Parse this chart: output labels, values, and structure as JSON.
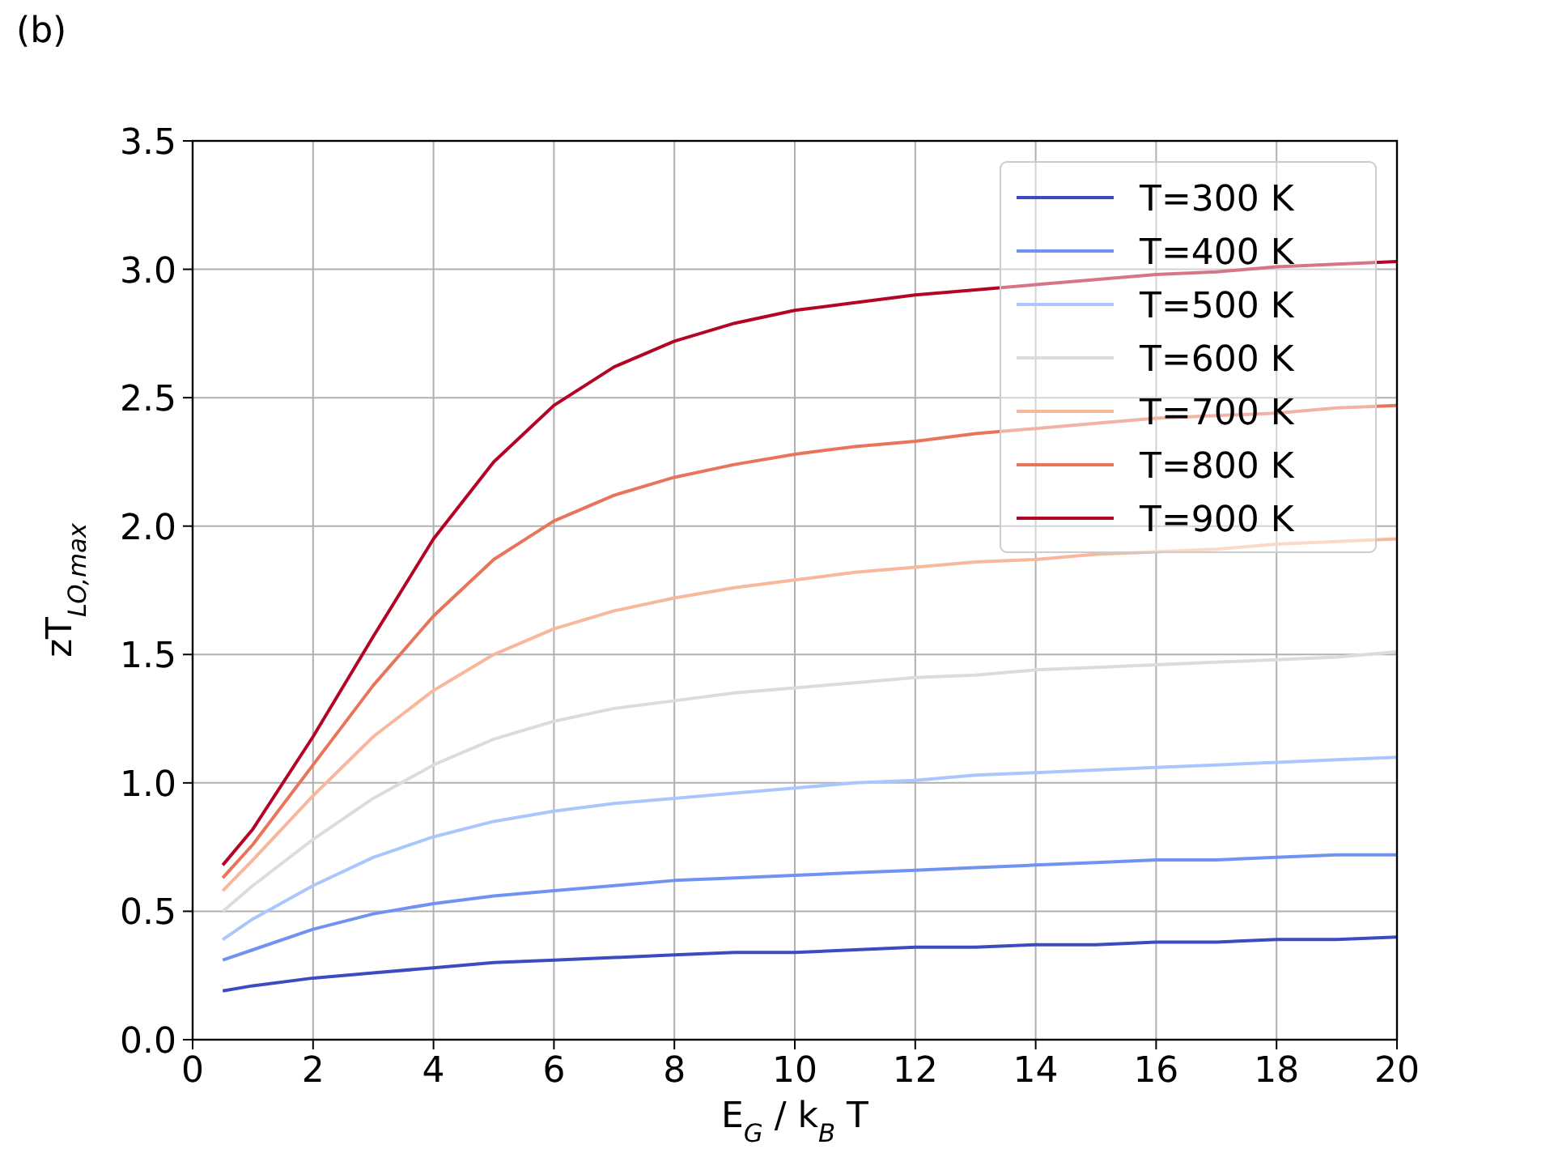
{
  "chart_data": {
    "type": "line",
    "annotations": [
      "(b)"
    ],
    "xlabel": "E$_{G}$ / k$_{B}$ T",
    "ylabel": "zT$_{LO,max}$",
    "x": [
      0.5,
      1,
      2,
      3,
      4,
      5,
      6,
      7,
      8,
      9,
      10,
      11,
      12,
      13,
      14,
      15,
      16,
      17,
      18,
      19,
      20
    ],
    "series": [
      {
        "name": "T=300 K",
        "color": "#3b4cc0",
        "values": [
          0.19,
          0.21,
          0.24,
          0.26,
          0.28,
          0.3,
          0.31,
          0.32,
          0.33,
          0.34,
          0.34,
          0.35,
          0.36,
          0.36,
          0.37,
          0.37,
          0.38,
          0.38,
          0.39,
          0.39,
          0.4
        ]
      },
      {
        "name": "T=400 K",
        "color": "#6f92f3",
        "values": [
          0.31,
          0.35,
          0.43,
          0.49,
          0.53,
          0.56,
          0.58,
          0.6,
          0.62,
          0.63,
          0.64,
          0.65,
          0.66,
          0.67,
          0.68,
          0.69,
          0.7,
          0.7,
          0.71,
          0.72,
          0.72
        ]
      },
      {
        "name": "T=500 K",
        "color": "#aac7fd",
        "values": [
          0.39,
          0.47,
          0.6,
          0.71,
          0.79,
          0.85,
          0.89,
          0.92,
          0.94,
          0.96,
          0.98,
          1.0,
          1.01,
          1.03,
          1.04,
          1.05,
          1.06,
          1.07,
          1.08,
          1.09,
          1.1
        ]
      },
      {
        "name": "T=600 K",
        "color": "#dddcdc",
        "values": [
          0.5,
          0.6,
          0.78,
          0.94,
          1.07,
          1.17,
          1.24,
          1.29,
          1.32,
          1.35,
          1.37,
          1.39,
          1.41,
          1.42,
          1.44,
          1.45,
          1.46,
          1.47,
          1.48,
          1.49,
          1.51
        ]
      },
      {
        "name": "T=700 K",
        "color": "#f7b89c",
        "values": [
          0.58,
          0.7,
          0.95,
          1.18,
          1.36,
          1.5,
          1.6,
          1.67,
          1.72,
          1.76,
          1.79,
          1.82,
          1.84,
          1.86,
          1.87,
          1.89,
          1.9,
          1.91,
          1.93,
          1.94,
          1.95
        ]
      },
      {
        "name": "T=800 K",
        "color": "#e7745b",
        "values": [
          0.63,
          0.76,
          1.07,
          1.38,
          1.65,
          1.87,
          2.02,
          2.12,
          2.19,
          2.24,
          2.28,
          2.31,
          2.33,
          2.36,
          2.38,
          2.4,
          2.42,
          2.43,
          2.44,
          2.46,
          2.47
        ]
      },
      {
        "name": "T=900 K",
        "color": "#b40426",
        "values": [
          0.68,
          0.82,
          1.18,
          1.57,
          1.95,
          2.25,
          2.47,
          2.62,
          2.72,
          2.79,
          2.84,
          2.87,
          2.9,
          2.92,
          2.94,
          2.96,
          2.98,
          2.99,
          3.01,
          3.02,
          3.03
        ]
      }
    ],
    "xlim": [
      0,
      20
    ],
    "xticks": [
      0,
      2,
      4,
      6,
      8,
      10,
      12,
      14,
      16,
      18,
      20
    ],
    "ylim": [
      0,
      3.5
    ],
    "yticks": [
      {
        "value": 0,
        "label": "0.0"
      },
      {
        "value": 0.5,
        "label": "0.5"
      },
      {
        "value": 1,
        "label": "1.0"
      },
      {
        "value": 1.5,
        "label": "1.5"
      },
      {
        "value": 2,
        "label": "2.0"
      },
      {
        "value": 2.5,
        "label": "2.5"
      },
      {
        "value": 3,
        "label": "3.0"
      },
      {
        "value": 3.5,
        "label": "3.5"
      }
    ],
    "grid": true,
    "legend": "top right",
    "line_style": "solid",
    "marker": "none"
  }
}
